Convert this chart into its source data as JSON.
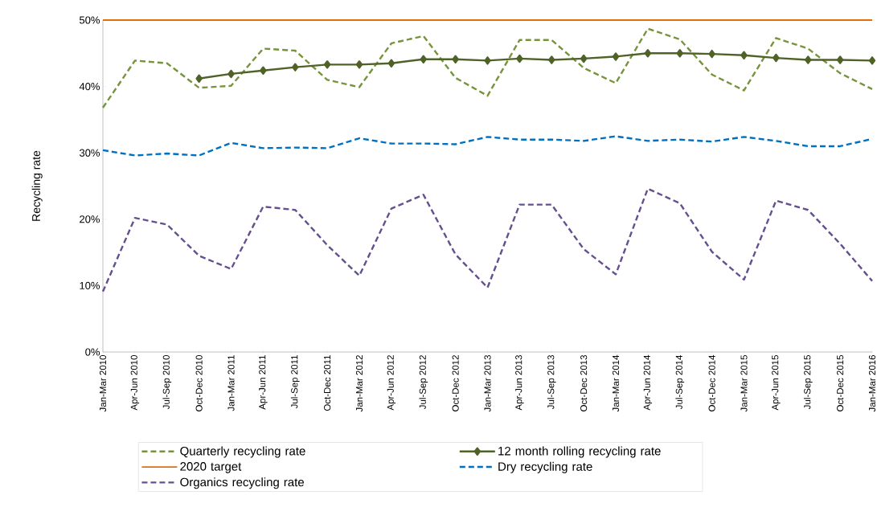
{
  "chart_data": {
    "type": "line",
    "categories": [
      "Jan-Mar 2010",
      "Apr-Jun 2010",
      "Jul-Sep 2010",
      "Oct-Dec 2010",
      "Jan-Mar 2011",
      "Apr-Jun 2011",
      "Jul-Sep 2011",
      "Oct-Dec 2011",
      "Jan-Mar 2012",
      "Apr-Jun 2012",
      "Jul-Sep 2012",
      "Oct-Dec 2012",
      "Jan-Mar 2013",
      "Apr-Jun 2013",
      "Jul-Sep 2013",
      "Oct-Dec 2013",
      "Jan-Mar 2014",
      "Apr-Jun 2014",
      "Jul-Sep 2014",
      "Oct-Dec 2014",
      "Jan-Mar 2015",
      "Apr-Jun 2015",
      "Jul-Sep 2015",
      "Oct-Dec 2015",
      "Jan-Mar 2016"
    ],
    "ylabel": "Recycling rate",
    "ylim": [
      0,
      50
    ],
    "yticks": [
      {
        "value": 0,
        "label": "0%"
      },
      {
        "value": 10,
        "label": "10%"
      },
      {
        "value": 20,
        "label": "20%"
      },
      {
        "value": 30,
        "label": "30%"
      },
      {
        "value": 40,
        "label": "40%"
      },
      {
        "value": 50,
        "label": "50%"
      }
    ],
    "grid": false,
    "legend": "bottom",
    "series": [
      {
        "name": "Quarterly recycling rate",
        "color": "#77933c",
        "line_style": "dashed",
        "marker": "none",
        "values": [
          36.8,
          43.9,
          43.5,
          39.8,
          40.1,
          45.7,
          45.4,
          41.0,
          39.9,
          46.5,
          47.6,
          41.3,
          38.6,
          47.0,
          47.0,
          42.8,
          40.5,
          48.7,
          47.1,
          41.8,
          39.4,
          47.3,
          45.7,
          42.0,
          39.6
        ]
      },
      {
        "name": "12 month rolling recycling rate",
        "color": "#4f6228",
        "line_style": "solid",
        "marker": "diamond",
        "values": [
          null,
          null,
          null,
          41.2,
          41.9,
          42.4,
          42.9,
          43.3,
          43.3,
          43.5,
          44.1,
          44.1,
          43.9,
          44.2,
          44.0,
          44.2,
          44.5,
          45.0,
          45.0,
          44.9,
          44.7,
          44.3,
          44.0,
          44.0,
          43.9
        ]
      },
      {
        "name": "2020 target",
        "color": "#e46c0a",
        "line_style": "solid",
        "marker": "none",
        "values": [
          50,
          50,
          50,
          50,
          50,
          50,
          50,
          50,
          50,
          50,
          50,
          50,
          50,
          50,
          50,
          50,
          50,
          50,
          50,
          50,
          50,
          50,
          50,
          50,
          50
        ]
      },
      {
        "name": "Dry recycling rate",
        "color": "#0070c0",
        "line_style": "dashed",
        "marker": "none",
        "values": [
          30.4,
          29.6,
          29.9,
          29.6,
          31.5,
          30.7,
          30.8,
          30.7,
          32.2,
          31.4,
          31.4,
          31.3,
          32.4,
          32.0,
          32.0,
          31.8,
          32.5,
          31.8,
          32.0,
          31.7,
          32.4,
          31.8,
          31.0,
          31.0,
          32.1
        ]
      },
      {
        "name": "Organics recycling rate",
        "color": "#65508f",
        "line_style": "dashed",
        "marker": "none",
        "values": [
          9.1,
          20.2,
          19.2,
          14.5,
          12.5,
          21.9,
          21.4,
          16.1,
          11.5,
          21.6,
          23.7,
          14.7,
          9.7,
          22.2,
          22.2,
          15.5,
          11.7,
          24.6,
          22.4,
          15.1,
          10.9,
          22.8,
          21.4,
          16.3,
          10.7
        ]
      }
    ]
  }
}
